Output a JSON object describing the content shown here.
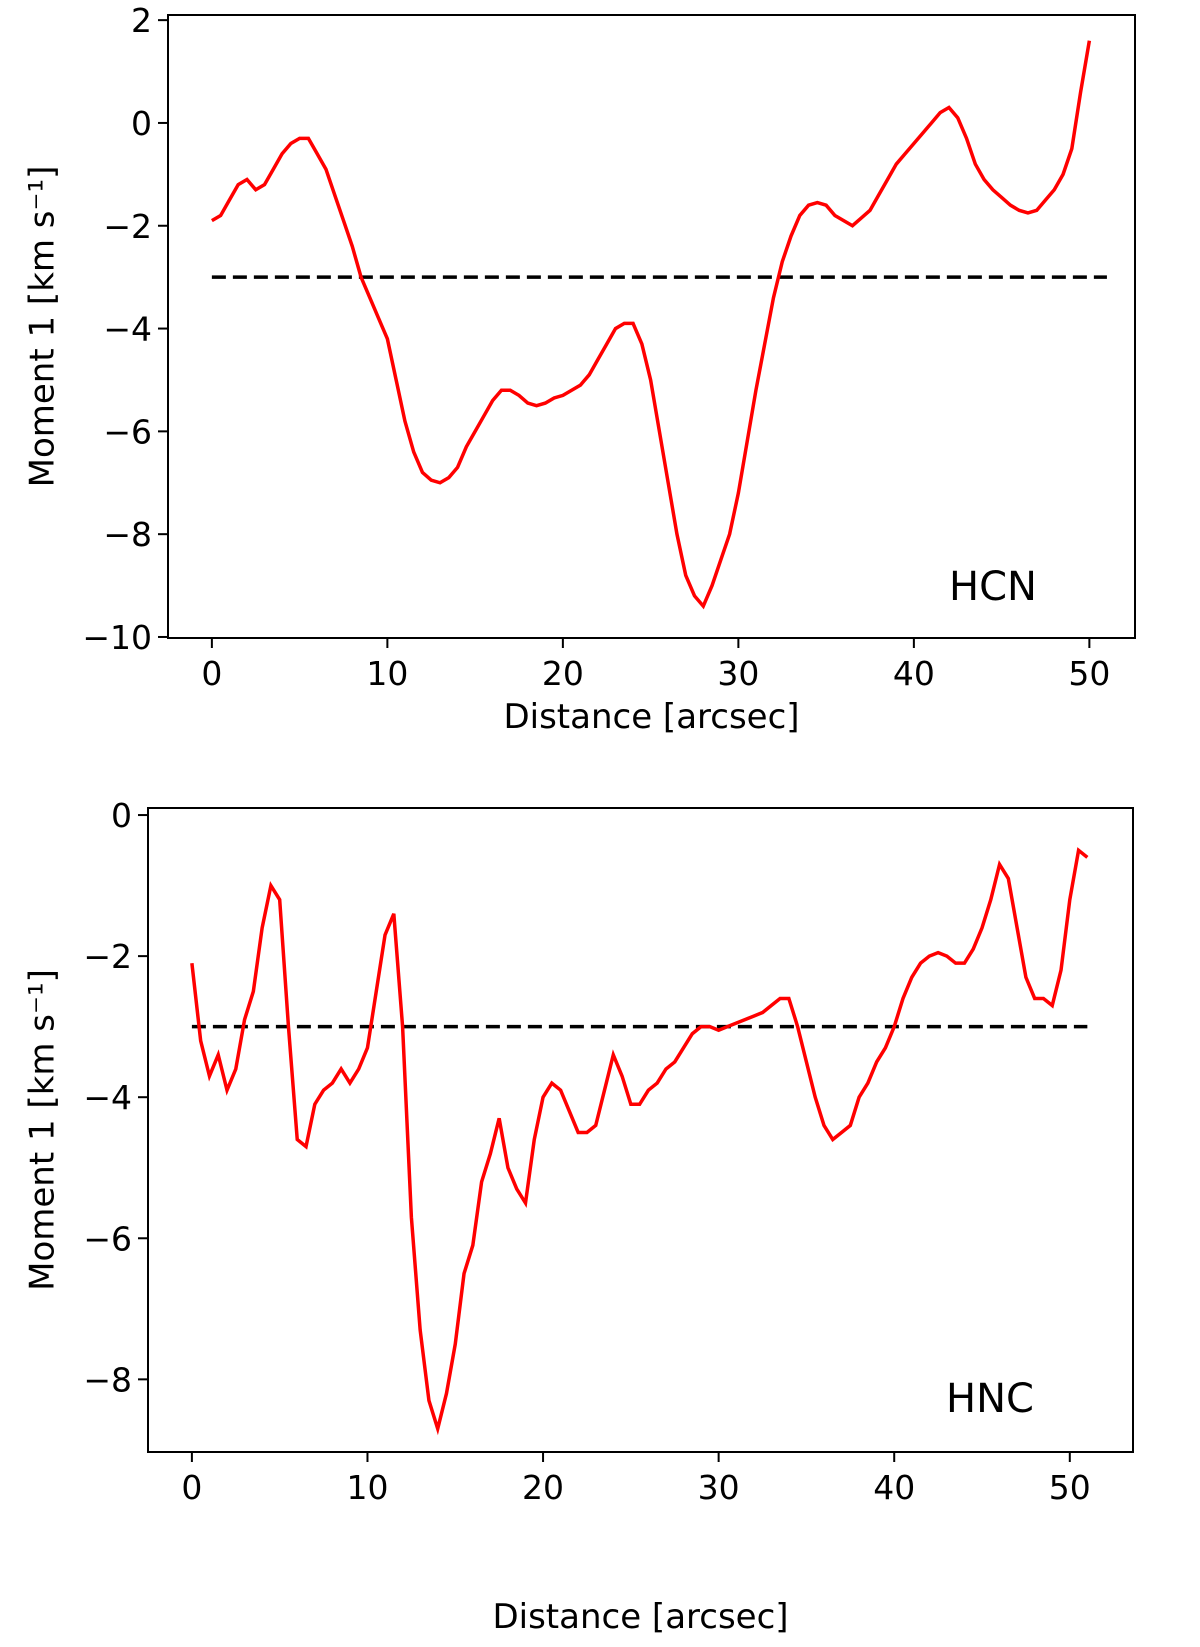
{
  "chart_data": [
    {
      "type": "line",
      "annotation": "HCN",
      "x_label": "Distance [arcsec]",
      "y_label": "Moment 1 [km s⁻¹]",
      "xlim": [
        -2.5,
        52.6
      ],
      "ylim": [
        -10.02,
        2.1
      ],
      "xticks": [
        0,
        10,
        20,
        30,
        40,
        50
      ],
      "yticks": [
        {
          "value": -10,
          "label": "−10"
        },
        {
          "value": -8,
          "label": "−8"
        },
        {
          "value": -6,
          "label": "−6"
        },
        {
          "value": -4,
          "label": "−4"
        },
        {
          "value": -2,
          "label": "−2"
        },
        0,
        2
      ],
      "x": [
        0,
        0.5,
        1,
        1.5,
        2,
        2.5,
        3,
        3.5,
        4,
        4.5,
        5,
        5.5,
        6,
        6.5,
        7,
        7.5,
        8,
        8.5,
        9,
        9.5,
        10,
        10.5,
        11,
        11.5,
        12,
        12.5,
        13,
        13.5,
        14,
        14.5,
        15,
        15.5,
        16,
        16.5,
        17,
        17.5,
        18,
        18.5,
        19,
        19.5,
        20,
        20.5,
        21,
        21.5,
        22,
        22.5,
        23,
        23.5,
        24,
        24.5,
        25,
        25.5,
        26,
        26.5,
        27,
        27.5,
        28,
        28.5,
        29,
        29.5,
        30,
        30.5,
        31,
        31.5,
        32,
        32.5,
        33,
        33.5,
        34,
        34.5,
        35,
        35.5,
        36,
        36.5,
        37,
        37.5,
        38,
        38.5,
        39,
        39.5,
        40,
        40.5,
        41,
        41.5,
        42,
        42.5,
        43,
        43.5,
        44,
        44.5,
        45,
        45.5,
        46,
        46.5,
        47,
        47.5,
        48,
        48.5,
        49,
        49.5,
        50
      ],
      "series": [
        {
          "color": "#ff0000",
          "values": [
            -1.9,
            -1.8,
            -1.5,
            -1.2,
            -1.1,
            -1.3,
            -1.2,
            -0.9,
            -0.6,
            -0.4,
            -0.3,
            -0.3,
            -0.6,
            -0.9,
            -1.4,
            -1.9,
            -2.4,
            -3.0,
            -3.4,
            -3.8,
            -4.2,
            -5.0,
            -5.8,
            -6.4,
            -6.8,
            -6.95,
            -7.0,
            -6.9,
            -6.7,
            -6.3,
            -6.0,
            -5.7,
            -5.4,
            -5.2,
            -5.2,
            -5.3,
            -5.45,
            -5.5,
            -5.45,
            -5.35,
            -5.3,
            -5.2,
            -5.1,
            -4.9,
            -4.6,
            -4.3,
            -4.0,
            -3.9,
            -3.9,
            -4.3,
            -5.0,
            -6.0,
            -7.0,
            -8.0,
            -8.8,
            -9.2,
            -9.4,
            -9.0,
            -8.5,
            -8.0,
            -7.2,
            -6.2,
            -5.2,
            -4.3,
            -3.4,
            -2.7,
            -2.2,
            -1.8,
            -1.6,
            -1.55,
            -1.6,
            -1.8,
            -1.9,
            -2.0,
            -1.85,
            -1.7,
            -1.4,
            -1.1,
            -0.8,
            -0.6,
            -0.4,
            -0.2,
            0.0,
            0.2,
            0.3,
            0.1,
            -0.3,
            -0.8,
            -1.1,
            -1.3,
            -1.45,
            -1.6,
            -1.7,
            -1.75,
            -1.7,
            -1.5,
            -1.3,
            -1.0,
            -0.5,
            0.6,
            1.6
          ]
        }
      ],
      "reference_line": {
        "y": -3,
        "x": [
          0,
          51
        ],
        "color": "#000000",
        "dashed": true
      }
    },
    {
      "type": "line",
      "annotation": "HNC",
      "x_label": "Distance [arcsec]",
      "y_label": "Moment 1 [km s⁻¹]",
      "xlim": [
        -2.5,
        53.6
      ],
      "ylim": [
        -9.03,
        0.1
      ],
      "xticks": [
        0,
        10,
        20,
        30,
        40,
        50
      ],
      "yticks": [
        {
          "value": -8,
          "label": "−8"
        },
        {
          "value": -6,
          "label": "−6"
        },
        {
          "value": -4,
          "label": "−4"
        },
        {
          "value": -2,
          "label": "−2"
        },
        0
      ],
      "x": [
        0,
        0.5,
        1,
        1.5,
        2,
        2.5,
        3,
        3.5,
        4,
        4.5,
        5,
        5.5,
        6,
        6.5,
        7,
        7.5,
        8,
        8.5,
        9,
        9.5,
        10,
        10.5,
        11,
        11.5,
        12,
        12.5,
        13,
        13.5,
        14,
        14.5,
        15,
        15.5,
        16,
        16.5,
        17,
        17.5,
        18,
        18.5,
        19,
        19.5,
        20,
        20.5,
        21,
        21.5,
        22,
        22.5,
        23,
        23.5,
        24,
        24.5,
        25,
        25.5,
        26,
        26.5,
        27,
        27.5,
        28,
        28.5,
        29,
        29.5,
        30,
        30.5,
        31,
        31.5,
        32,
        32.5,
        33,
        33.5,
        34,
        34.5,
        35,
        35.5,
        36,
        36.5,
        37,
        37.5,
        38,
        38.5,
        39,
        39.5,
        40,
        40.5,
        41,
        41.5,
        42,
        42.5,
        43,
        43.5,
        44,
        44.5,
        45,
        45.5,
        46,
        46.5,
        47,
        47.5,
        48,
        48.5,
        49,
        49.5,
        50,
        50.5,
        51
      ],
      "series": [
        {
          "color": "#ff0000",
          "values": [
            -2.1,
            -3.2,
            -3.7,
            -3.4,
            -3.9,
            -3.6,
            -2.9,
            -2.5,
            -1.6,
            -1.0,
            -1.2,
            -3.0,
            -4.6,
            -4.7,
            -4.1,
            -3.9,
            -3.8,
            -3.6,
            -3.8,
            -3.6,
            -3.3,
            -2.5,
            -1.7,
            -1.4,
            -3.0,
            -5.7,
            -7.3,
            -8.3,
            -8.7,
            -8.2,
            -7.5,
            -6.5,
            -6.1,
            -5.2,
            -4.8,
            -4.3,
            -5.0,
            -5.3,
            -5.5,
            -4.6,
            -4.0,
            -3.8,
            -3.9,
            -4.2,
            -4.5,
            -4.5,
            -4.4,
            -3.9,
            -3.4,
            -3.7,
            -4.1,
            -4.1,
            -3.9,
            -3.8,
            -3.6,
            -3.5,
            -3.3,
            -3.1,
            -3.0,
            -3.0,
            -3.05,
            -3.0,
            -2.95,
            -2.9,
            -2.85,
            -2.8,
            -2.7,
            -2.6,
            -2.6,
            -3.0,
            -3.5,
            -4.0,
            -4.4,
            -4.6,
            -4.5,
            -4.4,
            -4.0,
            -3.8,
            -3.5,
            -3.3,
            -3.0,
            -2.6,
            -2.3,
            -2.1,
            -2.0,
            -1.95,
            -2.0,
            -2.1,
            -2.1,
            -1.9,
            -1.6,
            -1.2,
            -0.7,
            -0.9,
            -1.6,
            -2.3,
            -2.6,
            -2.6,
            -2.7,
            -2.2,
            -1.2,
            -0.5,
            -0.6
          ]
        }
      ],
      "reference_line": {
        "y": -3,
        "x": [
          0,
          51
        ],
        "color": "#000000",
        "dashed": true
      }
    }
  ]
}
